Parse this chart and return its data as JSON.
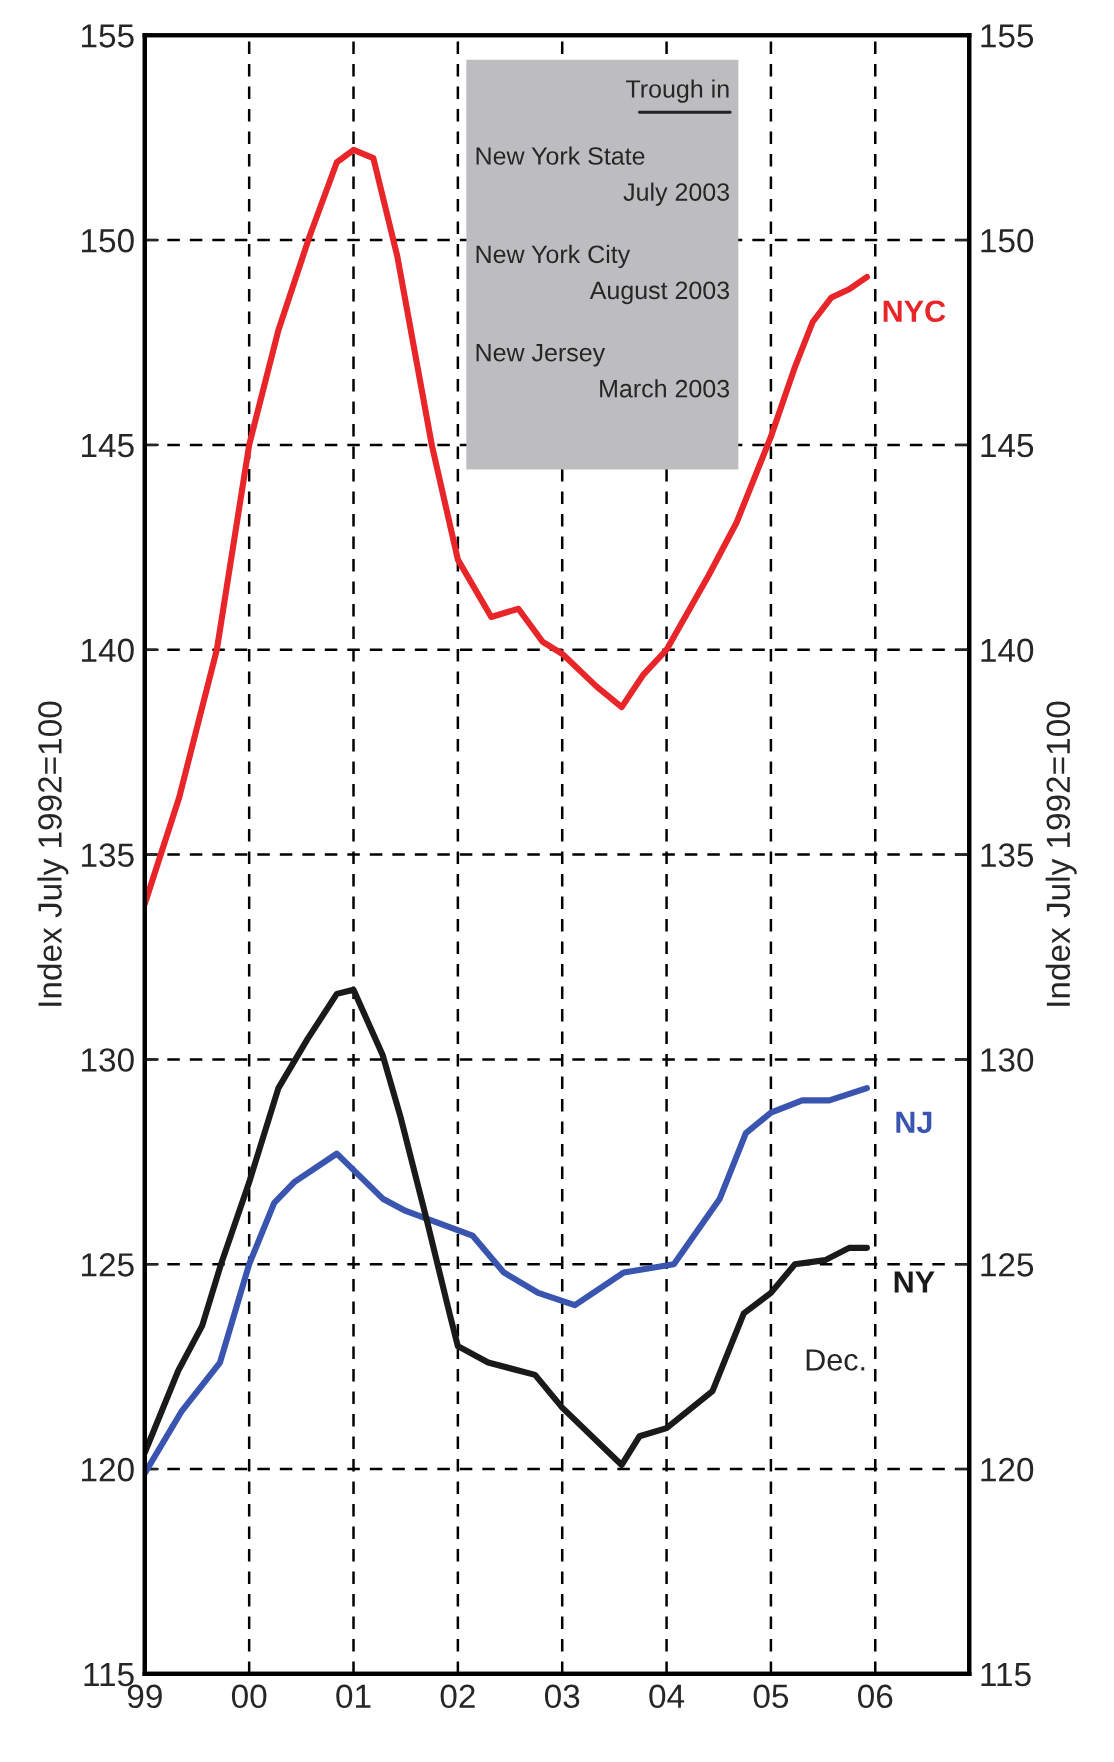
{
  "chart_data": {
    "type": "line",
    "ylabel": "Index July 1992=100",
    "y2label": "Index July 1992=100",
    "xlim": [
      1999,
      2006.9
    ],
    "xticks": [
      {
        "value": 1999,
        "label": "99"
      },
      {
        "value": 2000,
        "label": "00"
      },
      {
        "value": 2001,
        "label": "01"
      },
      {
        "value": 2002,
        "label": "02"
      },
      {
        "value": 2003,
        "label": "03"
      },
      {
        "value": 2004,
        "label": "04"
      },
      {
        "value": 2005,
        "label": "05"
      },
      {
        "value": 2006,
        "label": "06"
      }
    ],
    "ylim": [
      115,
      155
    ],
    "yticks": [
      115,
      120,
      125,
      130,
      135,
      140,
      145,
      150,
      155
    ],
    "y2lim": [
      115,
      155
    ],
    "y2ticks": [
      115,
      120,
      125,
      130,
      135,
      140,
      145,
      150,
      155
    ],
    "grid": true,
    "line_style": "solid",
    "marker": "none",
    "series": [
      {
        "name": "NYC",
        "color": "#e8262a",
        "x": [
          1999,
          1999.33,
          1999.69,
          2000,
          2000.28,
          2000.58,
          2000.84,
          2001,
          2001.19,
          2001.42,
          2001.75,
          2002,
          2002.32,
          2002.58,
          2002.81,
          2003,
          2003.33,
          2003.57,
          2003.78,
          2004,
          2004.4,
          2004.67,
          2005,
          2005.23,
          2005.4,
          2005.58,
          2005.75,
          2005.92
        ],
        "values": [
          133.8,
          136.4,
          140.0,
          145.0,
          147.8,
          150.1,
          151.9,
          152.2,
          152.0,
          149.6,
          145.0,
          142.2,
          140.8,
          141.0,
          140.2,
          139.9,
          139.1,
          138.6,
          139.4,
          140.0,
          141.8,
          143.1,
          145.2,
          146.9,
          148.0,
          148.6,
          148.8,
          149.1
        ]
      },
      {
        "name": "NJ",
        "color": "#3a55b0",
        "x": [
          1999,
          1999.35,
          1999.72,
          2000,
          2000.24,
          2000.43,
          2000.84,
          2001.28,
          2001.5,
          2002.14,
          2002.44,
          2002.77,
          2003.12,
          2003.59,
          2004.07,
          2004.51,
          2004.76,
          2005,
          2005.3,
          2005.56,
          2005.92
        ],
        "values": [
          119.9,
          121.4,
          122.6,
          125.0,
          126.5,
          127.0,
          127.7,
          126.6,
          126.3,
          125.7,
          124.8,
          124.3,
          124.0,
          124.8,
          125.0,
          126.6,
          128.2,
          128.7,
          129.0,
          129.0,
          129.3
        ]
      },
      {
        "name": "NY",
        "color": "#1a1a1a",
        "x": [
          1999,
          1999.32,
          1999.55,
          1999.73,
          2000,
          2000.28,
          2000.56,
          2000.84,
          2001,
          2001.28,
          2001.45,
          2001.7,
          2001.92,
          2002,
          2002.29,
          2002.74,
          2003,
          2003.57,
          2003.74,
          2004,
          2004.44,
          2004.74,
          2005,
          2005.23,
          2005.52,
          2005.75,
          2005.92
        ],
        "values": [
          120.4,
          122.4,
          123.5,
          125.0,
          127.0,
          129.3,
          130.5,
          131.6,
          131.7,
          130.1,
          128.6,
          126.1,
          123.8,
          123.0,
          122.6,
          122.3,
          121.5,
          120.1,
          120.8,
          121.0,
          121.9,
          123.8,
          124.3,
          125.0,
          125.1,
          125.4,
          125.4
        ]
      }
    ],
    "annotations": [
      "Trough in",
      "New York State",
      "July 2003",
      "New York City",
      "August 2003",
      "New Jersey",
      "March 2003",
      "Dec."
    ]
  }
}
